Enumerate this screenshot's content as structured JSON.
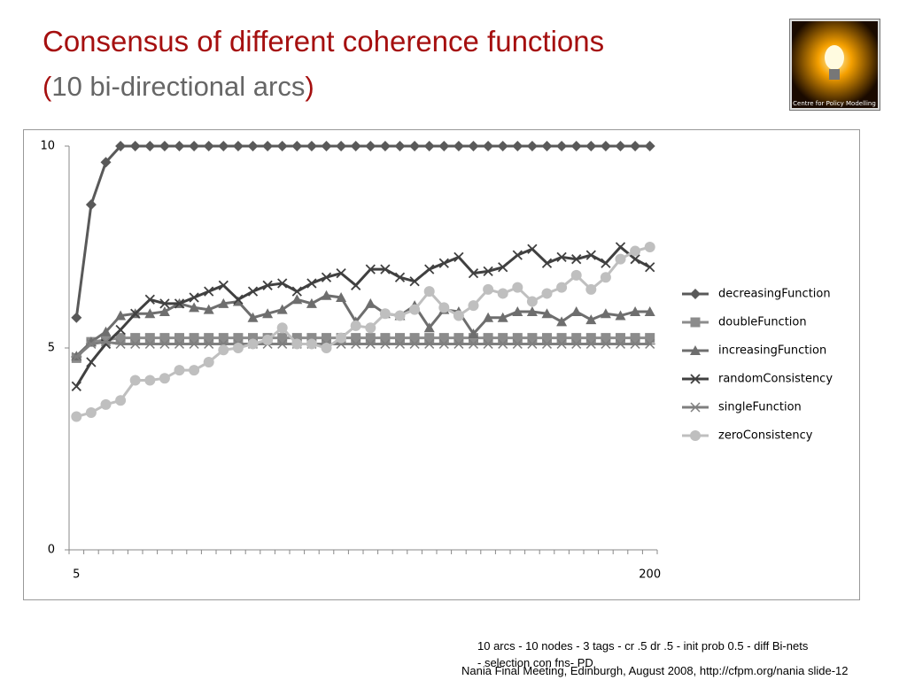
{
  "slide": {
    "title": "Consensus of different coherence functions",
    "subtitle_parts": [
      "(",
      "10 bi-directional arcs",
      ")"
    ],
    "logo_text": "Centre for Policy Modelling",
    "note_lines": [
      "10 arcs - 10 nodes - 3 tags - cr .5 dr .5 - init prob 0.5 - diff Bi-nets",
      "- selection con fns- PD"
    ],
    "footer": "Nania Final Meeting, Edinburgh, August 2008, http://cfpm.org/nania slide-12"
  },
  "chart_data": {
    "type": "line",
    "categories": [
      "5",
      null,
      null,
      null,
      null,
      null,
      null,
      null,
      null,
      null,
      null,
      null,
      null,
      null,
      null,
      null,
      null,
      null,
      null,
      null,
      null,
      null,
      null,
      null,
      null,
      null,
      null,
      null,
      null,
      null,
      null,
      null,
      null,
      null,
      null,
      null,
      null,
      null,
      null,
      "200"
    ],
    "ylim": [
      0,
      10
    ],
    "yticks": [
      0,
      5,
      10
    ],
    "grid": false,
    "legend": "right",
    "series": [
      {
        "name": "decreasingFunction",
        "color": "#595959",
        "marker": "diamond",
        "values": [
          5.75,
          8.55,
          9.6,
          10,
          10,
          10,
          10,
          10,
          10,
          10,
          10,
          10,
          10,
          10,
          10,
          10,
          10,
          10,
          10,
          10,
          10,
          10,
          10,
          10,
          10,
          10,
          10,
          10,
          10,
          10,
          10,
          10,
          10,
          10,
          10,
          10,
          10,
          10,
          10,
          10
        ]
      },
      {
        "name": "doubleFunction",
        "color": "#8c8c8c",
        "marker": "square",
        "values": [
          4.75,
          5.15,
          5.2,
          5.25,
          5.25,
          5.25,
          5.25,
          5.25,
          5.25,
          5.25,
          5.25,
          5.25,
          5.25,
          5.25,
          5.25,
          5.25,
          5.25,
          5.25,
          5.25,
          5.25,
          5.25,
          5.25,
          5.25,
          5.25,
          5.25,
          5.25,
          5.25,
          5.25,
          5.25,
          5.25,
          5.25,
          5.25,
          5.25,
          5.25,
          5.25,
          5.25,
          5.25,
          5.25,
          5.25,
          5.25
        ]
      },
      {
        "name": "increasingFunction",
        "color": "#6e6e6e",
        "marker": "triangle",
        "values": [
          4.8,
          5.15,
          5.4,
          5.8,
          5.85,
          5.85,
          5.9,
          6.1,
          6.0,
          5.95,
          6.1,
          6.15,
          5.75,
          5.85,
          5.95,
          6.2,
          6.1,
          6.3,
          6.25,
          5.65,
          6.1,
          5.85,
          5.8,
          6.05,
          5.5,
          5.95,
          5.9,
          5.35,
          5.75,
          5.75,
          5.9,
          5.9,
          5.85,
          5.65,
          5.9,
          5.7,
          5.85,
          5.8,
          5.9,
          5.9
        ]
      },
      {
        "name": "randomConsistency",
        "color": "#404040",
        "marker": "x",
        "values": [
          4.05,
          4.65,
          5.1,
          5.45,
          5.85,
          6.2,
          6.1,
          6.1,
          6.25,
          6.4,
          6.55,
          6.2,
          6.4,
          6.55,
          6.6,
          6.4,
          6.6,
          6.75,
          6.85,
          6.55,
          6.95,
          6.95,
          6.75,
          6.65,
          6.95,
          7.1,
          7.25,
          6.85,
          6.9,
          7.0,
          7.3,
          7.45,
          7.1,
          7.25,
          7.2,
          7.3,
          7.1,
          7.5,
          7.2,
          7.0
        ]
      },
      {
        "name": "singleFunction",
        "color": "#7f7f7f",
        "marker": "star",
        "values": [
          4.78,
          5.1,
          5.15,
          5.1,
          5.1,
          5.1,
          5.1,
          5.1,
          5.1,
          5.1,
          5.1,
          5.1,
          5.1,
          5.1,
          5.1,
          5.1,
          5.1,
          5.1,
          5.1,
          5.1,
          5.1,
          5.1,
          5.1,
          5.1,
          5.1,
          5.1,
          5.1,
          5.1,
          5.1,
          5.1,
          5.1,
          5.1,
          5.1,
          5.1,
          5.1,
          5.1,
          5.1,
          5.1,
          5.1,
          5.1
        ]
      },
      {
        "name": "zeroConsistency",
        "color": "#bfbfbf",
        "marker": "circle",
        "values": [
          3.3,
          3.4,
          3.6,
          3.7,
          4.2,
          4.2,
          4.25,
          4.45,
          4.45,
          4.65,
          4.95,
          5.0,
          5.1,
          5.2,
          5.5,
          5.1,
          5.1,
          5.0,
          5.25,
          5.55,
          5.5,
          5.85,
          5.8,
          5.95,
          6.4,
          6.0,
          5.8,
          6.05,
          6.45,
          6.35,
          6.5,
          6.15,
          6.35,
          6.5,
          6.8,
          6.45,
          6.75,
          7.2,
          7.4,
          7.5
        ]
      }
    ]
  }
}
